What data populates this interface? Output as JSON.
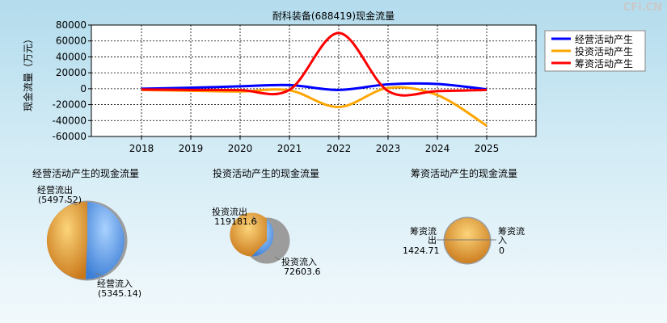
{
  "watermark": "CFi.CN",
  "chart_data": [
    {
      "type": "line",
      "title": "耐科装备(688419)现金流量",
      "ylabel": "现金流量（万元）",
      "ylim": [
        -60000,
        80000
      ],
      "yticks": [
        80000,
        60000,
        40000,
        20000,
        0,
        -20000,
        -40000,
        -60000
      ],
      "categories": [
        "2018",
        "2019",
        "2020",
        "2021",
        "2022",
        "2023",
        "2024",
        "2025"
      ],
      "grid": true,
      "legend_position": "top-right",
      "series": [
        {
          "name": "经营活动产生",
          "color": "#0000ff",
          "values": [
            0,
            1200,
            3000,
            4500,
            -1500,
            5500,
            6000,
            -800
          ]
        },
        {
          "name": "投资活动产生",
          "color": "#ffa500",
          "values": [
            -1500,
            -2500,
            -3500,
            -2000,
            -23000,
            1000,
            -8000,
            -46500
          ]
        },
        {
          "name": "筹资活动产生",
          "color": "#ff0000",
          "values": [
            -1000,
            -1500,
            -1800,
            -1500,
            70000,
            -3000,
            -3000,
            -1500
          ]
        }
      ]
    },
    {
      "type": "pie",
      "title": "经营活动产生的现金流量",
      "slices": [
        {
          "label": "经营流出",
          "value": 5497.52,
          "display": "(5497.52)",
          "color": "#f5a623"
        },
        {
          "label": "经营流入",
          "value": 5345.14,
          "display": "(5345.14)",
          "color": "#5ba3f5"
        }
      ]
    },
    {
      "type": "pie",
      "title": "投资活动产生的现金流量",
      "slices": [
        {
          "label": "投资流出",
          "value": 119181.6,
          "display": "119181.6",
          "color": "#f5a623"
        },
        {
          "label": "投资流入",
          "value": 72603.6,
          "display": "72603.6",
          "color": "#5ba3f5"
        }
      ]
    },
    {
      "type": "pie",
      "title": "筹资活动产生的现金流量",
      "slices": [
        {
          "label": "筹资流出",
          "value": 1424.71,
          "display": "1424.71",
          "color": "#f5a623"
        },
        {
          "label": "筹资流入",
          "value": 0,
          "display": "0",
          "color": "#5ba3f5"
        }
      ]
    }
  ]
}
